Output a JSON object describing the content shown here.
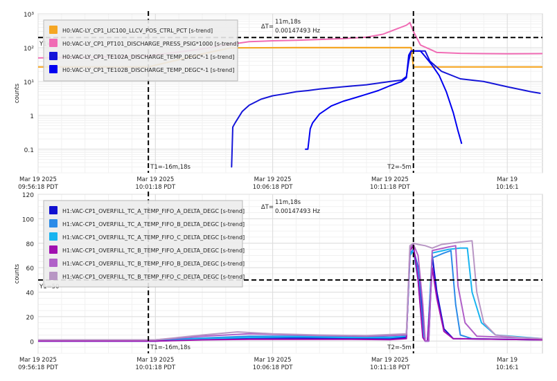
{
  "chart_data": [
    {
      "type": "line",
      "ylabel": "counts",
      "yscale": "log",
      "ylim": [
        0.02,
        1000
      ],
      "yticks": [
        {
          "v": 1000,
          "label": "10³"
        },
        {
          "v": 100,
          "label": "10²"
        },
        {
          "v": 10,
          "label": "10¹"
        },
        {
          "v": 1,
          "label": "1"
        },
        {
          "v": 0.1,
          "label": "0.1"
        }
      ],
      "xlim": [
        -21,
        0.5
      ],
      "xticks": [
        {
          "v": -21,
          "date": "Mar 19 2025",
          "time": "09:56:18 PDT"
        },
        {
          "v": -16,
          "date": "Mar 19 2025",
          "time": "10:01:18 PDT"
        },
        {
          "v": -11,
          "date": "Mar 19 2025",
          "time": "10:06:18 PDT"
        },
        {
          "v": -6,
          "date": "Mar 19 2025",
          "time": "10:11:18 PDT"
        },
        {
          "v": -1,
          "date": "Mar 19",
          "time": "10:16:1"
        }
      ],
      "grid": true,
      "legend_position": "top-left",
      "cursors": {
        "t1": -16.3,
        "t1_label": "T1=-16m,18s",
        "t2": -5,
        "t2_label": "T2=-5m",
        "y1": 200,
        "y1_label": "Y1=",
        "dt_label": "ΔT=",
        "dt_value": "11m,18s",
        "dt_freq": "0.00147493 Hz"
      },
      "series": [
        {
          "name": "H0:VAC-LY_CP1_LIC100_LLCV_POS_CTRL_PCT [s-trend]",
          "color": "#f5a623",
          "width": 2.2,
          "points": [
            [
              -21,
              27
            ],
            [
              -16.3,
              27
            ],
            [
              -13.8,
              70
            ],
            [
              -12.8,
              99
            ],
            [
              -10,
              100
            ],
            [
              -8,
              100
            ],
            [
              -5.1,
              100
            ],
            [
              -5,
              27
            ],
            [
              -3,
              27
            ],
            [
              0.5,
              27
            ]
          ]
        },
        {
          "name": "H0:VAC-LY_CP1_PT101_DISCHARGE_PRESS_PSIG*1000 [s-trend]",
          "color": "#f06bb4",
          "width": 2,
          "points": [
            [
              -21,
              50
            ],
            [
              -19,
              52
            ],
            [
              -17,
              56
            ],
            [
              -16.3,
              58
            ],
            [
              -15,
              74
            ],
            [
              -14,
              92
            ],
            [
              -13,
              120
            ],
            [
              -12,
              150
            ],
            [
              -11,
              160
            ],
            [
              -10,
              165
            ],
            [
              -9,
              175
            ],
            [
              -8,
              185
            ],
            [
              -7,
              205
            ],
            [
              -6.3,
              250
            ],
            [
              -5.8,
              340
            ],
            [
              -5.3,
              460
            ],
            [
              -5.15,
              550
            ],
            [
              -5,
              300
            ],
            [
              -4.7,
              120
            ],
            [
              -4.3,
              90
            ],
            [
              -4,
              72
            ],
            [
              -3,
              68
            ],
            [
              -2,
              67
            ],
            [
              -1,
              66
            ],
            [
              0.5,
              67
            ]
          ]
        },
        {
          "name": "H0:VAC-LY_CP1_TE102A_DISCHARGE_TEMP_DEGC*-1 [s-trend]",
          "color": "#1515d8",
          "width": 2,
          "points": [
            [
              -12.75,
              0.03
            ],
            [
              -12.7,
              0.45
            ],
            [
              -12.6,
              0.6
            ],
            [
              -12.3,
              1.3
            ],
            [
              -12,
              2
            ],
            [
              -11.5,
              3
            ],
            [
              -11,
              3.8
            ],
            [
              -10.5,
              4.3
            ],
            [
              -10,
              5
            ],
            [
              -9.5,
              5.4
            ],
            [
              -9,
              6
            ],
            [
              -8.5,
              6.5
            ],
            [
              -8,
              7
            ],
            [
              -7,
              8
            ],
            [
              -6,
              10
            ],
            [
              -5.5,
              11
            ],
            [
              -5.3,
              14
            ],
            [
              -5.2,
              40
            ],
            [
              -5.1,
              80
            ],
            [
              -4.5,
              80
            ],
            [
              -4.3,
              40
            ],
            [
              -3.8,
              20
            ],
            [
              -3,
              12
            ],
            [
              -2,
              10
            ],
            [
              -1,
              7
            ],
            [
              0,
              5
            ],
            [
              0.4,
              4.5
            ]
          ]
        },
        {
          "name": "H0:VAC-LY_CP1_TE102B_DISCHARGE_TEMP_DEGC*-1 [s-trend]",
          "color": "#0000f0",
          "width": 2,
          "points": [
            [
              -9.6,
              0.1
            ],
            [
              -9.5,
              0.1
            ],
            [
              -9.4,
              0.4
            ],
            [
              -9.3,
              0.6
            ],
            [
              -9,
              1.1
            ],
            [
              -8.5,
              1.9
            ],
            [
              -8,
              2.6
            ],
            [
              -7.5,
              3.3
            ],
            [
              -7,
              4.2
            ],
            [
              -6.5,
              5.4
            ],
            [
              -6,
              7.5
            ],
            [
              -5.5,
              10
            ],
            [
              -5.3,
              13
            ],
            [
              -5.2,
              60
            ],
            [
              -5.1,
              80
            ],
            [
              -4.7,
              80
            ],
            [
              -4.5,
              55
            ],
            [
              -4.2,
              30
            ],
            [
              -3.9,
              15
            ],
            [
              -3.6,
              5
            ],
            [
              -3.3,
              1.2
            ],
            [
              -3.1,
              0.35
            ],
            [
              -2.95,
              0.15
            ]
          ]
        }
      ]
    },
    {
      "type": "line",
      "ylabel": "counts",
      "yscale": "linear",
      "ylim": [
        -10,
        120
      ],
      "yticks": [
        {
          "v": 120,
          "label": "120"
        },
        {
          "v": 100,
          "label": "100"
        },
        {
          "v": 80,
          "label": "80"
        },
        {
          "v": 60,
          "label": "60"
        },
        {
          "v": 40,
          "label": "40"
        },
        {
          "v": 20,
          "label": "20"
        },
        {
          "v": 0,
          "label": "0"
        }
      ],
      "xlim": [
        -21,
        0.5
      ],
      "xticks": [
        {
          "v": -21,
          "date": "Mar 19 2025",
          "time": "09:56:18 PDT"
        },
        {
          "v": -16,
          "date": "Mar 19 2025",
          "time": "10:01:18 PDT"
        },
        {
          "v": -11,
          "date": "Mar 19 2025",
          "time": "10:06:18 PDT"
        },
        {
          "v": -6,
          "date": "Mar 19 2025",
          "time": "10:11:18 PDT"
        },
        {
          "v": -1,
          "date": "Mar 19",
          "time": "10:16:1"
        }
      ],
      "grid": true,
      "legend_position": "top-left",
      "cursors": {
        "t1": -16.3,
        "t1_label": "T1=-16m,18s",
        "t2": -5,
        "t2_label": "T2=-5m",
        "y1": 50,
        "y1_label": "Y1=50",
        "dt_label": "ΔT=",
        "dt_value": "11m,18s",
        "dt_freq": "0.00147493 Hz"
      },
      "series": [
        {
          "name": "H1:VAC-CP1_OVERFILL_TC_A_TEMP_FIFO_A_DELTA_DEGC [s-trend]",
          "color": "#1010d0",
          "width": 2,
          "points": [
            [
              -21,
              0
            ],
            [
              -16,
              0
            ],
            [
              -14,
              1.5
            ],
            [
              -12,
              2.5
            ],
            [
              -10,
              2.5
            ],
            [
              -8,
              2.3
            ],
            [
              -6,
              2
            ],
            [
              -5.3,
              3
            ],
            [
              -5.15,
              70
            ],
            [
              -5,
              75
            ],
            [
              -4.8,
              60
            ],
            [
              -4.6,
              20
            ],
            [
              -4.5,
              0
            ],
            [
              -4.35,
              0
            ],
            [
              -4.2,
              70
            ],
            [
              -4,
              40
            ],
            [
              -3.7,
              10
            ],
            [
              -3.3,
              2
            ],
            [
              0.5,
              1
            ]
          ]
        },
        {
          "name": "H1:VAC-CP1_OVERFILL_TC_A_TEMP_FIFO_B_DELTA_DEGC [s-trend]",
          "color": "#2b8be8",
          "width": 2,
          "points": [
            [
              -21,
              1
            ],
            [
              -16,
              1
            ],
            [
              -14,
              2.5
            ],
            [
              -12,
              4
            ],
            [
              -10,
              4
            ],
            [
              -8,
              3.6
            ],
            [
              -6,
              3.3
            ],
            [
              -5.3,
              4
            ],
            [
              -5.15,
              72
            ],
            [
              -5,
              75
            ],
            [
              -4.8,
              58
            ],
            [
              -4.6,
              10
            ],
            [
              -4.5,
              0
            ],
            [
              -4.4,
              0
            ],
            [
              -4.2,
              68
            ],
            [
              -3.7,
              72
            ],
            [
              -3.4,
              74
            ],
            [
              -3.2,
              30
            ],
            [
              -3,
              5
            ],
            [
              -2.5,
              2
            ],
            [
              0.5,
              1
            ]
          ]
        },
        {
          "name": "H1:VAC-CP1_OVERFILL_TC_A_TEMP_FIFO_C_DELTA_DEGC [s-trend]",
          "color": "#18b4f0",
          "width": 2,
          "points": [
            [
              -21,
              0
            ],
            [
              -16,
              0
            ],
            [
              -14,
              2
            ],
            [
              -12,
              3
            ],
            [
              -10,
              3.5
            ],
            [
              -8,
              3
            ],
            [
              -6,
              2.8
            ],
            [
              -5.3,
              4
            ],
            [
              -5.15,
              70
            ],
            [
              -5,
              74
            ],
            [
              -4.8,
              50
            ],
            [
              -4.6,
              5
            ],
            [
              -4.5,
              0
            ],
            [
              -4.4,
              0
            ],
            [
              -4.2,
              72
            ],
            [
              -3.5,
              75
            ],
            [
              -3,
              76
            ],
            [
              -2.7,
              76
            ],
            [
              -2.5,
              40
            ],
            [
              -2.1,
              15
            ],
            [
              -1.5,
              5
            ],
            [
              0.5,
              2
            ]
          ]
        },
        {
          "name": "H1:VAC-CP1_OVERFILL_TC_B_TEMP_FIFO_A_DELTA_DEGC [s-trend]",
          "color": "#a010b0",
          "width": 2,
          "points": [
            [
              -21,
              0
            ],
            [
              -16,
              0
            ],
            [
              -14,
              1
            ],
            [
              -12,
              1.5
            ],
            [
              -10,
              1.5
            ],
            [
              -8,
              1.5
            ],
            [
              -6,
              1.2
            ],
            [
              -5.3,
              2
            ],
            [
              -5.15,
              74
            ],
            [
              -5,
              78
            ],
            [
              -4.8,
              50
            ],
            [
              -4.6,
              3
            ],
            [
              -4.5,
              0
            ],
            [
              -4.4,
              0
            ],
            [
              -4.2,
              60
            ],
            [
              -4,
              35
            ],
            [
              -3.7,
              8
            ],
            [
              -3.3,
              2
            ],
            [
              0.5,
              1
            ]
          ]
        },
        {
          "name": "H1:VAC-CP1_OVERFILL_TC_B_TEMP_FIFO_B_DELTA_DEGC [s-trend]",
          "color": "#b060c8",
          "width": 2,
          "points": [
            [
              -21,
              1
            ],
            [
              -16,
              1
            ],
            [
              -14,
              4
            ],
            [
              -12,
              6
            ],
            [
              -11,
              5.5
            ],
            [
              -9,
              4.5
            ],
            [
              -7,
              4
            ],
            [
              -5.3,
              5
            ],
            [
              -5.15,
              76
            ],
            [
              -5,
              79
            ],
            [
              -4.8,
              70
            ],
            [
              -4.6,
              30
            ],
            [
              -4.5,
              0
            ],
            [
              -4.35,
              0
            ],
            [
              -4.2,
              74
            ],
            [
              -3.5,
              77
            ],
            [
              -3.2,
              78
            ],
            [
              -3.1,
              45
            ],
            [
              -2.8,
              15
            ],
            [
              -2.3,
              4
            ],
            [
              0.5,
              2
            ]
          ]
        },
        {
          "name": "H1:VAC-CP1_OVERFILL_TC_B_TEMP_FIFO_C_DELTA_DEGC [s-trend]",
          "color": "#b896c4",
          "width": 2,
          "points": [
            [
              -21,
              1
            ],
            [
              -16,
              1
            ],
            [
              -14,
              5
            ],
            [
              -12.5,
              7.5
            ],
            [
              -11,
              6
            ],
            [
              -9,
              5
            ],
            [
              -7,
              4.5
            ],
            [
              -5.3,
              6
            ],
            [
              -5.15,
              78
            ],
            [
              -5,
              80
            ],
            [
              -4.8,
              79
            ],
            [
              -4.5,
              78
            ],
            [
              -4.2,
              76
            ],
            [
              -3.8,
              79
            ],
            [
              -3,
              81
            ],
            [
              -2.5,
              82
            ],
            [
              -2.3,
              40
            ],
            [
              -2,
              15
            ],
            [
              -1.5,
              5
            ],
            [
              -0.5,
              3
            ],
            [
              0.5,
              2
            ]
          ]
        }
      ]
    }
  ]
}
